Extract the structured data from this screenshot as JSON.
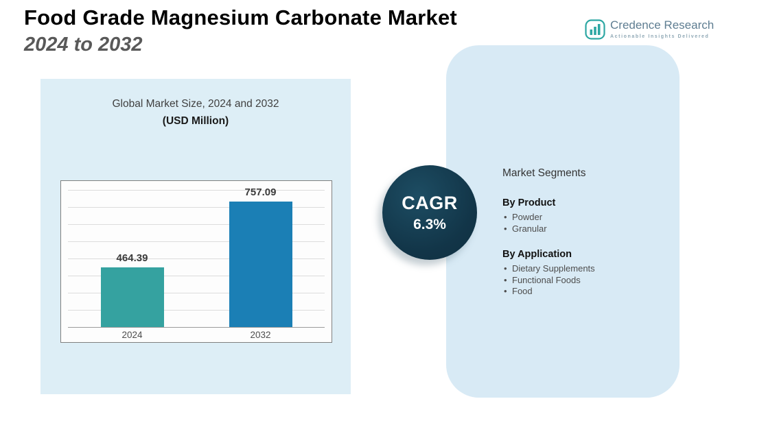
{
  "header": {
    "title_line1": "Food Grade Magnesium Carbonate Market",
    "title_line2": "2024 to 2032"
  },
  "logo": {
    "name": "Credence Research",
    "tagline": "Actionable Insights Delivered",
    "icon": "bar-chart-logo-icon",
    "accent_color": "#2da7a3",
    "text_color": "#5e7d91"
  },
  "chart_panel": {
    "title_line1": "Global Market Size, 2024 and 2032",
    "title_line2": "(USD Million)",
    "panel_bg_color": "#ddeef6"
  },
  "chart_data": {
    "type": "bar",
    "categories": [
      "2024",
      "2032"
    ],
    "values": [
      464.39,
      757.09
    ],
    "title": "Global Market Size, 2024 and 2032 (USD Million)",
    "xlabel": "",
    "ylabel": "",
    "ylim": [
      200,
      800
    ],
    "grid": true,
    "legend": false,
    "bar_colors": [
      "#35a2a0",
      "#1b7fb5"
    ]
  },
  "cagr_badge": {
    "label": "CAGR",
    "value": "6.3%",
    "circle_color": "#123548"
  },
  "segments_panel": {
    "title": "Market Segments",
    "panel_bg_color": "#d8eaf5",
    "groups": [
      {
        "heading": "By Product",
        "items": [
          "Powder",
          "Granular"
        ]
      },
      {
        "heading": "By Application",
        "items": [
          "Dietary Supplements",
          "Functional Foods",
          "Food"
        ]
      }
    ]
  }
}
